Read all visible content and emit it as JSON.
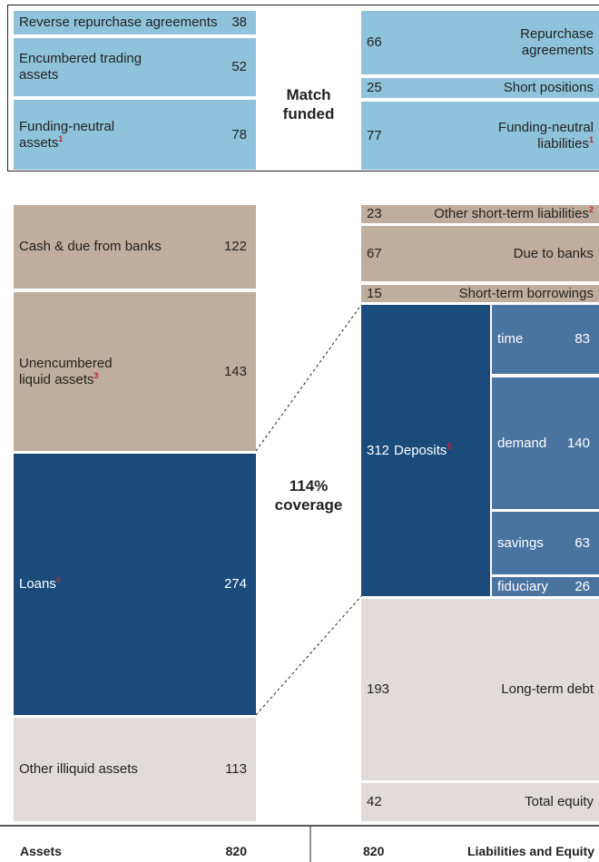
{
  "match_funded": {
    "label": "Match funded",
    "assets": [
      {
        "label": "Reverse repurchase agreements",
        "value": "38"
      },
      {
        "label": "Encumbered trading assets",
        "value": "52"
      },
      {
        "label": "Funding-neutral assets",
        "note": "1",
        "value": "78"
      }
    ],
    "liabilities": [
      {
        "label": "Repurchase agreements",
        "value": "66"
      },
      {
        "label": "Short positions",
        "value": "25"
      },
      {
        "label": "Funding-neutral liabilities",
        "note": "1",
        "value": "77"
      }
    ]
  },
  "coverage": {
    "label": "114% coverage"
  },
  "assets": [
    {
      "label": "Cash & due from banks",
      "value": "122"
    },
    {
      "label": "Unencumbered liquid assets",
      "note": "3",
      "value": "143"
    },
    {
      "label": "Loans",
      "note": "4",
      "value": "274"
    },
    {
      "label": "Other illiquid assets",
      "value": "113"
    }
  ],
  "liabilities": [
    {
      "label": "Other short-term liabilities",
      "note": "2",
      "value": "23"
    },
    {
      "label": "Due to banks",
      "value": "67"
    },
    {
      "label": "Short-term borrowings",
      "value": "15"
    },
    {
      "label": "Long-term debt",
      "value": "193"
    },
    {
      "label": "Total equity",
      "value": "42"
    }
  ],
  "deposits": {
    "value": "312",
    "label": "Deposits",
    "note": "5",
    "items": [
      {
        "label": "time",
        "value": "83"
      },
      {
        "label": "demand",
        "value": "140"
      },
      {
        "label": "savings",
        "value": "63"
      },
      {
        "label": "fiduciary",
        "value": "26"
      }
    ]
  },
  "footer": {
    "assets_label": "Assets",
    "assets_total": "820",
    "liabilities_total": "820",
    "liabilities_label": "Liabilities and Equity"
  }
}
